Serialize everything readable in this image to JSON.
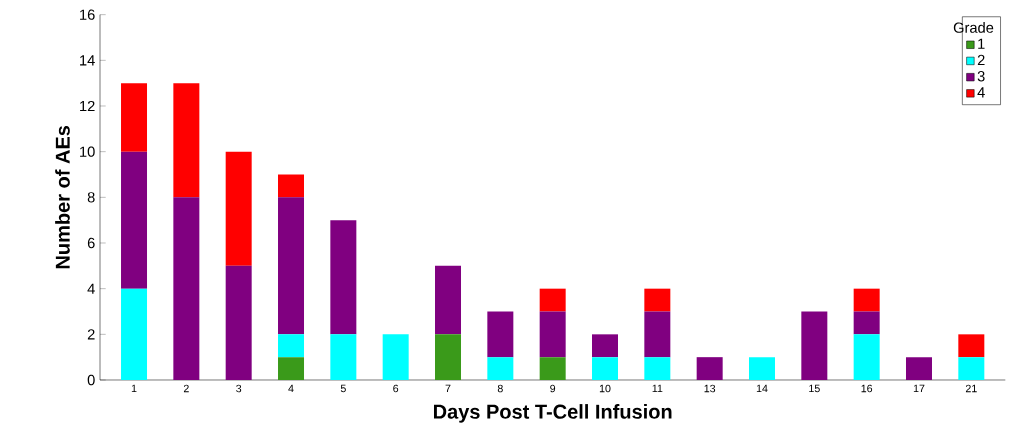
{
  "chart_data": {
    "type": "bar",
    "stacked": true,
    "xlabel": "Days Post T-Cell Infusion",
    "ylabel": "Number of AEs",
    "legend_title": "Grade",
    "legend": "top right",
    "grid": false,
    "categories": [
      "1",
      "2",
      "3",
      "4",
      "5",
      "6",
      "7",
      "8",
      "9",
      "10",
      "11",
      "13",
      "14",
      "15",
      "16",
      "17",
      "21"
    ],
    "ylim": [
      0,
      16
    ],
    "yticks": [
      0,
      2,
      4,
      6,
      8,
      10,
      12,
      14,
      16
    ],
    "series": [
      {
        "name": "1",
        "color": "#3a9a1a",
        "values": [
          0,
          0,
          0,
          1,
          0,
          0,
          2,
          0,
          1,
          0,
          0,
          0,
          0,
          0,
          0,
          0,
          0
        ]
      },
      {
        "name": "2",
        "color": "#00ffff",
        "values": [
          4,
          0,
          0,
          1,
          2,
          2,
          0,
          1,
          0,
          1,
          1,
          0,
          1,
          0,
          2,
          0,
          1
        ]
      },
      {
        "name": "3",
        "color": "#800080",
        "values": [
          6,
          8,
          5,
          6,
          5,
          0,
          3,
          2,
          2,
          1,
          2,
          1,
          0,
          3,
          1,
          1,
          0
        ]
      },
      {
        "name": "4",
        "color": "#ff0000",
        "values": [
          3,
          5,
          5,
          1,
          0,
          0,
          0,
          0,
          1,
          0,
          1,
          0,
          0,
          0,
          1,
          0,
          1
        ]
      }
    ]
  }
}
